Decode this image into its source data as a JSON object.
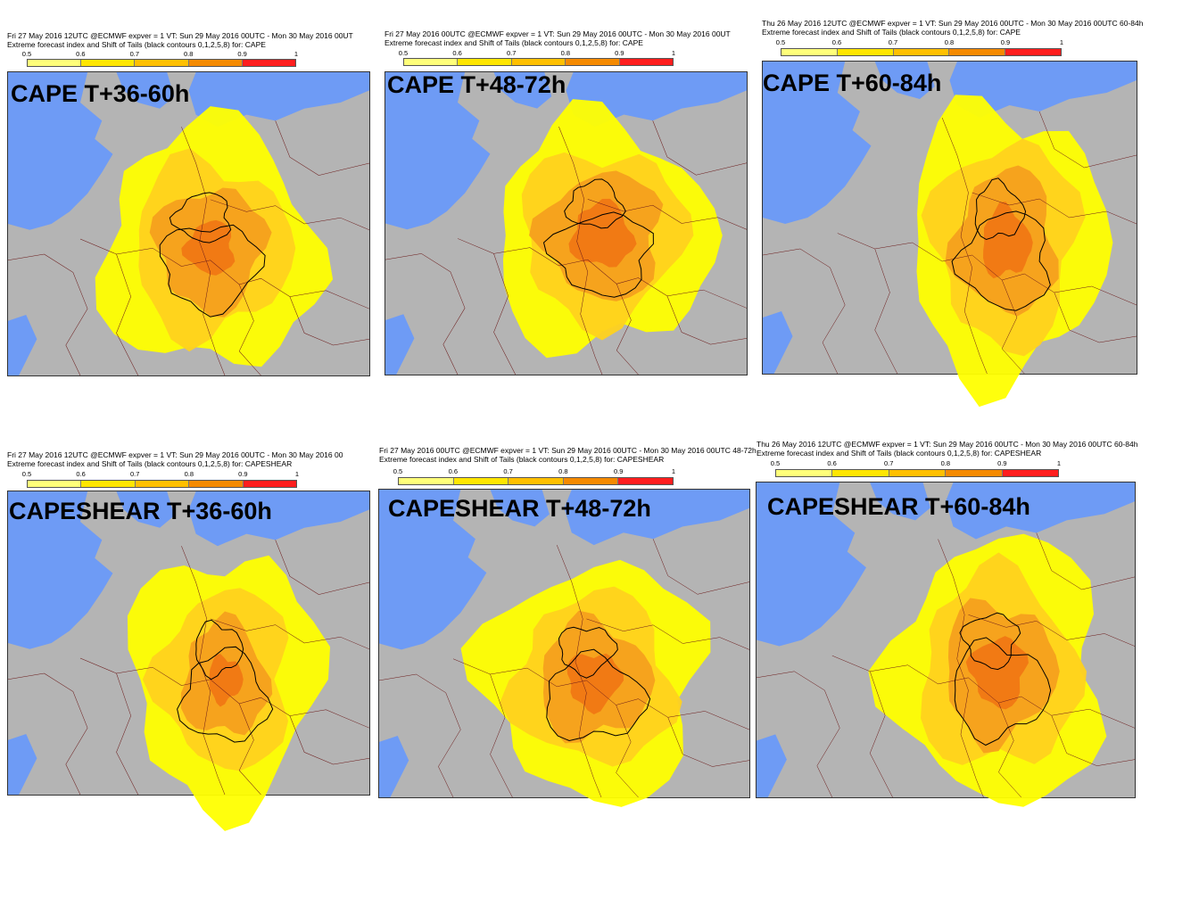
{
  "colors": {
    "sea": "#6e9bf5",
    "land": "#b4b4b4",
    "borders": "#6b1a1a",
    "scale": [
      "#ffff7a",
      "#ffe600",
      "#ffc000",
      "#f58a00",
      "#ff1e1e"
    ],
    "efi_colors": [
      "#ffff00",
      "#ffd21e",
      "#f5a01e",
      "#f07814"
    ]
  },
  "scale_ticks": [
    "0.5",
    "0.6",
    "0.7",
    "0.8",
    "0.9",
    "1"
  ],
  "panels": [
    {
      "id": "cape-36-60",
      "header_line1": "Fri 27 May 2016 12UTC @ECMWF expver = 1 VT: Sun 29 May 2016 00UTC - Mon 30 May 2016 00UT",
      "header_line2": "Extreme forecast index and Shift of Tails (black contours 0,1,2,5,8) for: CAPE",
      "label": "CAPE T+36-60h",
      "efi_levels": [
        1,
        0.72,
        0.5,
        0.22
      ]
    },
    {
      "id": "cape-48-72",
      "header_line1": "Fri 27 May 2016 00UTC @ECMWF expver = 1 VT: Sun 29 May 2016 00UTC - Mon 30 May 2016 00UT",
      "header_line2": "Extreme forecast index and Shift of Tails (black contours 0,1,2,5,8) for: CAPE",
      "label": "CAPE T+48-72h",
      "efi_levels": [
        1,
        0.75,
        0.55,
        0.28
      ]
    },
    {
      "id": "cape-60-84",
      "header_line1": "Thu 26 May 2016 12UTC @ECMWF expver = 1 VT: Sun 29 May 2016 00UTC - Mon 30 May 2016 00UTC  60-84h",
      "header_line2": "Extreme forecast index and Shift of Tails (black contours 0,1,2,5,8) for: CAPE",
      "label": "CAPE T+60-84h",
      "efi_levels": [
        1,
        0.74,
        0.52,
        0.25
      ]
    },
    {
      "id": "capeshear-36-60",
      "header_line1": "Fri 27 May 2016 12UTC @ECMWF expver = 1 VT: Sun 29 May 2016 00UTC - Mon 30 May 2016 00",
      "header_line2": "Extreme forecast index and Shift of Tails (black contours 0,1,2,5,8) for: CAPESHEAR",
      "label": "CAPESHEAR T+36-60h",
      "efi_levels": [
        1,
        0.7,
        0.45,
        0.18
      ]
    },
    {
      "id": "capeshear-48-72",
      "header_line1": "Fri 27 May 2016 00UTC @ECMWF expver = 1 VT: Sun 29 May 2016 00UTC - Mon 30 May 2016 00UTC  48-72h",
      "header_line2": "Extreme forecast index and Shift of Tails (black contours 0,1,2,5,8) for: CAPESHEAR",
      "label": "CAPESHEAR T+48-72h",
      "efi_levels": [
        1,
        0.72,
        0.5,
        0.24
      ]
    },
    {
      "id": "capeshear-60-84",
      "header_line1": "Thu 26 May 2016 12UTC @ECMWF expver = 1 VT: Sun 29 May 2016 00UTC - Mon 30 May 2016 00UTC  60-84h",
      "header_line2": "Extreme forecast index and Shift of Tails (black contours 0,1,2,5,8) for: CAPESHEAR",
      "label": "CAPESHEAR T+60-84h",
      "efi_levels": [
        1,
        0.74,
        0.52,
        0.26
      ]
    }
  ]
}
